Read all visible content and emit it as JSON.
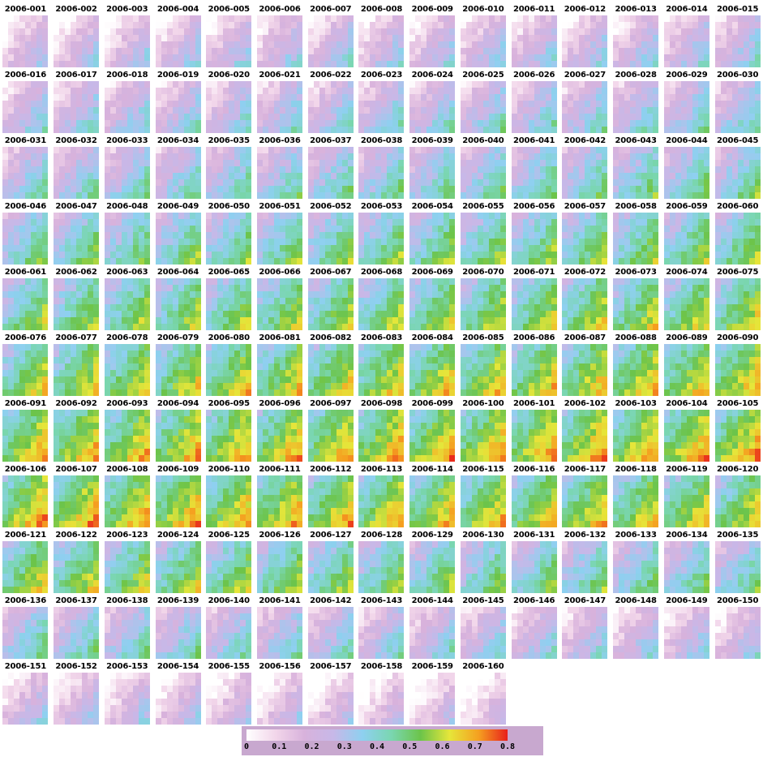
{
  "chart_data": {
    "type": "heatmap",
    "title": "",
    "panel_labels": [
      "2006-001",
      "2006-002",
      "2006-003",
      "2006-004",
      "2006-005",
      "2006-006",
      "2006-007",
      "2006-008",
      "2006-009",
      "2006-010",
      "2006-011",
      "2006-012",
      "2006-013",
      "2006-014",
      "2006-015",
      "2006-016",
      "2006-017",
      "2006-018",
      "2006-019",
      "2006-020",
      "2006-021",
      "2006-022",
      "2006-023",
      "2006-024",
      "2006-025",
      "2006-026",
      "2006-027",
      "2006-028",
      "2006-029",
      "2006-030",
      "2006-031",
      "2006-032",
      "2006-033",
      "2006-034",
      "2006-035",
      "2006-036",
      "2006-037",
      "2006-038",
      "2006-039",
      "2006-040",
      "2006-041",
      "2006-042",
      "2006-043",
      "2006-044",
      "2006-045",
      "2006-046",
      "2006-047",
      "2006-048",
      "2006-049",
      "2006-050",
      "2006-051",
      "2006-052",
      "2006-053",
      "2006-054",
      "2006-055",
      "2006-056",
      "2006-057",
      "2006-058",
      "2006-059",
      "2006-060",
      "2006-061",
      "2006-062",
      "2006-063",
      "2006-064",
      "2006-065",
      "2006-066",
      "2006-067",
      "2006-068",
      "2006-069",
      "2006-070",
      "2006-071",
      "2006-072",
      "2006-073",
      "2006-074",
      "2006-075",
      "2006-076",
      "2006-077",
      "2006-078",
      "2006-079",
      "2006-080",
      "2006-081",
      "2006-082",
      "2006-083",
      "2006-084",
      "2006-085",
      "2006-086",
      "2006-087",
      "2006-088",
      "2006-089",
      "2006-090",
      "2006-091",
      "2006-092",
      "2006-093",
      "2006-094",
      "2006-095",
      "2006-096",
      "2006-097",
      "2006-098",
      "2006-099",
      "2006-100",
      "2006-101",
      "2006-102",
      "2006-103",
      "2006-104",
      "2006-105",
      "2006-106",
      "2006-107",
      "2006-108",
      "2006-109",
      "2006-110",
      "2006-111",
      "2006-112",
      "2006-113",
      "2006-114",
      "2006-115",
      "2006-116",
      "2006-117",
      "2006-118",
      "2006-119",
      "2006-120",
      "2006-121",
      "2006-122",
      "2006-123",
      "2006-124",
      "2006-125",
      "2006-126",
      "2006-127",
      "2006-128",
      "2006-129",
      "2006-130",
      "2006-131",
      "2006-132",
      "2006-133",
      "2006-134",
      "2006-135",
      "2006-136",
      "2006-137",
      "2006-138",
      "2006-139",
      "2006-140",
      "2006-141",
      "2006-142",
      "2006-143",
      "2006-144",
      "2006-145",
      "2006-146",
      "2006-147",
      "2006-148",
      "2006-149",
      "2006-150",
      "2006-151",
      "2006-152",
      "2006-153",
      "2006-154",
      "2006-155",
      "2006-156",
      "2006-157",
      "2006-158",
      "2006-159",
      "2006-160"
    ],
    "panel_mean_level": [
      0.15,
      0.15,
      0.16,
      0.17,
      0.18,
      0.19,
      0.2,
      0.18,
      0.18,
      0.19,
      0.19,
      0.19,
      0.2,
      0.21,
      0.22,
      0.22,
      0.23,
      0.23,
      0.23,
      0.24,
      0.24,
      0.24,
      0.25,
      0.25,
      0.26,
      0.26,
      0.26,
      0.27,
      0.27,
      0.28,
      0.28,
      0.28,
      0.29,
      0.29,
      0.3,
      0.3,
      0.31,
      0.31,
      0.32,
      0.32,
      0.33,
      0.33,
      0.34,
      0.34,
      0.35,
      0.36,
      0.37,
      0.37,
      0.38,
      0.38,
      0.38,
      0.39,
      0.39,
      0.4,
      0.4,
      0.4,
      0.41,
      0.41,
      0.41,
      0.42,
      0.42,
      0.42,
      0.43,
      0.43,
      0.43,
      0.44,
      0.44,
      0.44,
      0.45,
      0.45,
      0.45,
      0.46,
      0.46,
      0.46,
      0.47,
      0.47,
      0.48,
      0.48,
      0.48,
      0.49,
      0.49,
      0.49,
      0.5,
      0.5,
      0.5,
      0.5,
      0.51,
      0.51,
      0.51,
      0.52,
      0.52,
      0.52,
      0.52,
      0.53,
      0.53,
      0.53,
      0.53,
      0.54,
      0.54,
      0.54,
      0.54,
      0.55,
      0.55,
      0.55,
      0.55,
      0.55,
      0.55,
      0.54,
      0.54,
      0.53,
      0.53,
      0.52,
      0.52,
      0.51,
      0.51,
      0.5,
      0.5,
      0.49,
      0.49,
      0.48,
      0.47,
      0.46,
      0.45,
      0.44,
      0.43,
      0.42,
      0.41,
      0.4,
      0.39,
      0.38,
      0.37,
      0.36,
      0.35,
      0.34,
      0.33,
      0.32,
      0.31,
      0.3,
      0.29,
      0.28,
      0.27,
      0.26,
      0.25,
      0.24,
      0.23,
      0.22,
      0.21,
      0.2,
      0.19,
      0.18,
      0.17,
      0.16,
      0.15,
      0.14,
      0.13,
      0.12,
      0.11,
      0.1,
      0.09,
      0.08
    ],
    "colorbar": {
      "min": 0,
      "max": 0.8,
      "ticks": [
        "0",
        "0.1",
        "0.2",
        "0.3",
        "0.4",
        "0.5",
        "0.6",
        "0.7",
        "0.8"
      ],
      "colors": [
        "#ffffff",
        "#f2d6ea",
        "#d8b2dc",
        "#c7b8e8",
        "#8ed0f0",
        "#7ad6b0",
        "#6cc44a",
        "#e6e63a",
        "#f5a020",
        "#e8201c"
      ]
    },
    "grid": {
      "rows": 11,
      "columns": 15
    }
  }
}
